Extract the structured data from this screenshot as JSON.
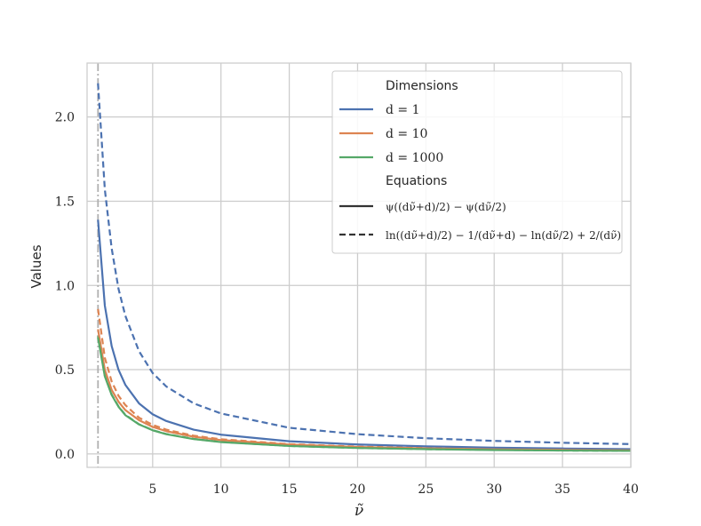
{
  "chart_data": {
    "type": "line",
    "xlabel": "ν̃",
    "ylabel": "Values",
    "xlim": [
      0.2,
      40
    ],
    "ylim": [
      -0.08,
      2.32
    ],
    "xticks": [
      5,
      10,
      15,
      20,
      25,
      30,
      35,
      40
    ],
    "xtick_labels": [
      "5",
      "10",
      "15",
      "20",
      "25",
      "30",
      "35",
      "40"
    ],
    "yticks": [
      0.0,
      0.5,
      1.0,
      1.5,
      2.0
    ],
    "ytick_labels": [
      "0.0",
      "0.5",
      "1.0",
      "1.5",
      "2.0"
    ],
    "grid": true,
    "legend_position": "top-right",
    "vertical_reference_line": {
      "x": 1,
      "style": "dash-dot",
      "color": "#b0b0b0"
    },
    "legend": {
      "dimensions_title": "Dimensions",
      "equations_title": "Equations",
      "dimension_entries": [
        {
          "label": "d = 1",
          "color": "#4c72b0"
        },
        {
          "label": "d = 10",
          "color": "#dd8452"
        },
        {
          "label": "d = 1000",
          "color": "#55a868"
        }
      ],
      "equation_entries": [
        {
          "label": "ψ((dν̃+d)/2) − ψ(dν̃/2)",
          "style": "solid"
        },
        {
          "label": "ln((dν̃+d)/2) − 1/(dν̃+d) − ln(dν̃/2) + 2/(dν̃)",
          "style": "dashed"
        }
      ]
    },
    "series": [
      {
        "name": "d = 1",
        "equation": "solid",
        "color": "#4c72b0",
        "x": [
          1,
          1.5,
          2,
          2.5,
          3,
          4,
          5,
          6,
          8,
          10,
          15,
          20,
          25,
          30,
          35,
          40
        ],
        "y": [
          1.39,
          0.88,
          0.64,
          0.5,
          0.41,
          0.3,
          0.235,
          0.195,
          0.144,
          0.114,
          0.075,
          0.056,
          0.045,
          0.037,
          0.032,
          0.028
        ]
      },
      {
        "name": "d = 1",
        "equation": "dashed",
        "color": "#4c72b0",
        "x": [
          1,
          1.5,
          2,
          2.5,
          3,
          4,
          5,
          6,
          8,
          10,
          15,
          20,
          25,
          30,
          35,
          40
        ],
        "y": [
          2.2,
          1.57,
          1.22,
          0.98,
          0.82,
          0.61,
          0.48,
          0.4,
          0.3,
          0.24,
          0.155,
          0.117,
          0.093,
          0.077,
          0.066,
          0.058
        ]
      },
      {
        "name": "d = 10",
        "equation": "solid",
        "color": "#dd8452",
        "x": [
          1,
          1.5,
          2,
          2.5,
          3,
          4,
          5,
          6,
          8,
          10,
          15,
          20,
          25,
          30,
          35,
          40
        ],
        "y": [
          0.74,
          0.5,
          0.38,
          0.31,
          0.26,
          0.2,
          0.16,
          0.135,
          0.102,
          0.082,
          0.055,
          0.041,
          0.033,
          0.027,
          0.024,
          0.021
        ]
      },
      {
        "name": "d = 10",
        "equation": "dashed",
        "color": "#dd8452",
        "x": [
          1,
          1.5,
          2,
          2.5,
          3,
          4,
          5,
          6,
          8,
          10,
          15,
          20,
          25,
          30,
          35,
          40
        ],
        "y": [
          0.86,
          0.57,
          0.43,
          0.345,
          0.29,
          0.215,
          0.172,
          0.144,
          0.108,
          0.087,
          0.058,
          0.043,
          0.035,
          0.029,
          0.025,
          0.022
        ]
      },
      {
        "name": "d = 1000",
        "equation": "solid",
        "color": "#55a868",
        "x": [
          1,
          1.5,
          2,
          2.5,
          3,
          4,
          5,
          6,
          8,
          10,
          15,
          20,
          25,
          30,
          35,
          40
        ],
        "y": [
          0.69,
          0.46,
          0.35,
          0.28,
          0.23,
          0.175,
          0.14,
          0.117,
          0.088,
          0.07,
          0.047,
          0.035,
          0.028,
          0.023,
          0.02,
          0.018
        ]
      },
      {
        "name": "d = 1000",
        "equation": "dashed",
        "color": "#55a868",
        "x": [
          1,
          1.5,
          2,
          2.5,
          3,
          4,
          5,
          6,
          8,
          10,
          15,
          20,
          25,
          30,
          35,
          40
        ],
        "y": [
          0.7,
          0.465,
          0.352,
          0.282,
          0.232,
          0.176,
          0.141,
          0.118,
          0.089,
          0.071,
          0.047,
          0.035,
          0.028,
          0.024,
          0.02,
          0.018
        ]
      }
    ]
  }
}
